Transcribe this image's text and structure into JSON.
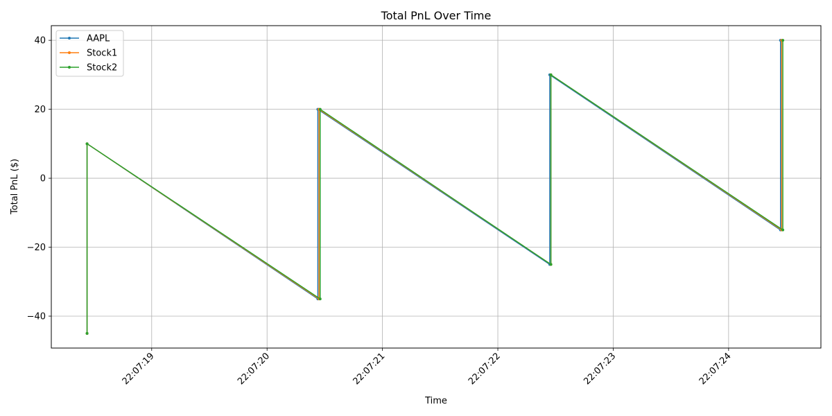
{
  "chart_data": {
    "type": "line",
    "title": "Total PnL Over Time",
    "xlabel": "Time",
    "ylabel": "Total PnL ($)",
    "x_ticks": [
      "22:07:19",
      "22:07:20",
      "22:07:21",
      "22:07:22",
      "22:07:23",
      "22:07:24"
    ],
    "y_ticks": [
      -40,
      -20,
      0,
      20,
      40
    ],
    "xlim": [
      "22:07:18.13",
      "22:07:24.80"
    ],
    "ylim": [
      -49.25,
      44.25
    ],
    "grid": true,
    "legend": "top-left",
    "series": [
      {
        "name": "AAPL",
        "color": "#1f77b4",
        "x": [
          "22:07:18.44",
          "22:07:18.44",
          "22:07:20.44",
          "22:07:20.44",
          "22:07:22.45",
          "22:07:22.45",
          "22:07:24.45",
          "22:07:24.45"
        ],
        "y": [
          -45,
          10,
          -35,
          20,
          -25,
          30,
          -15,
          40
        ]
      },
      {
        "name": "Stock1",
        "color": "#ff7f0e",
        "x": [
          "22:07:18.44",
          "22:07:18.44",
          "22:07:20.45",
          "22:07:20.45",
          "22:07:22.46",
          "22:07:22.46",
          "22:07:24.46",
          "22:07:24.46"
        ],
        "y": [
          -45,
          10,
          -35,
          20,
          -25,
          30,
          -15,
          40
        ]
      },
      {
        "name": "Stock2",
        "color": "#2ca02c",
        "x": [
          "22:07:18.44",
          "22:07:18.44",
          "22:07:20.46",
          "22:07:20.46",
          "22:07:22.46",
          "22:07:22.46",
          "22:07:24.47",
          "22:07:24.47"
        ],
        "y": [
          -45,
          10,
          -35,
          20,
          -25,
          30,
          -15,
          40
        ]
      }
    ]
  }
}
